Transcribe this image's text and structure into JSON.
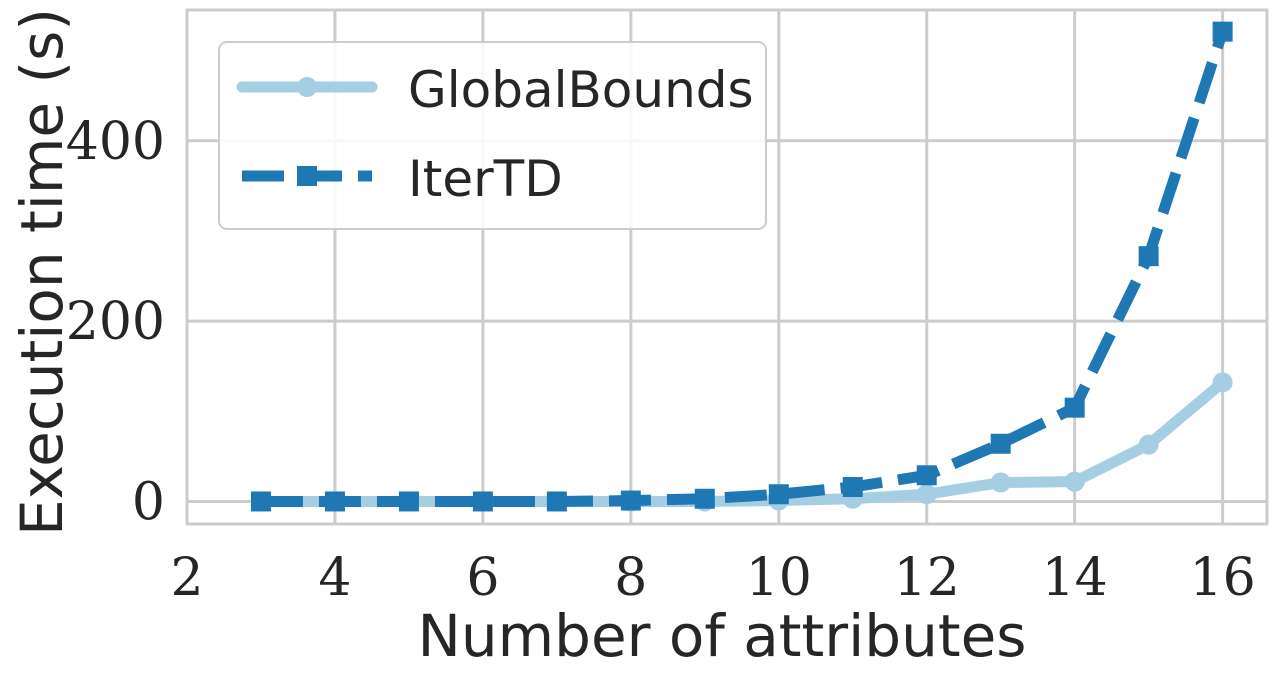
{
  "chart_data": {
    "type": "line",
    "xlabel": "Number of attributes",
    "ylabel": "Execution time (s)",
    "xlim": [
      2,
      16.6
    ],
    "ylim": [
      -25,
      545
    ],
    "xticks": [
      2,
      4,
      6,
      8,
      10,
      12,
      14,
      16
    ],
    "yticks": [
      0,
      200,
      400
    ],
    "grid": true,
    "legend_position": "top-left",
    "x": [
      3,
      4,
      5,
      6,
      7,
      8,
      9,
      10,
      11,
      12,
      13,
      14,
      15,
      16
    ],
    "series": [
      {
        "name": "GlobalBounds",
        "color": "#a6cee3",
        "line_style": "solid",
        "marker": "circle",
        "values": [
          0,
          0,
          0,
          0,
          0,
          0,
          0,
          1,
          3,
          8,
          21,
          22,
          63,
          132
        ]
      },
      {
        "name": "IterTD",
        "color": "#1f78b4",
        "line_style": "dashed",
        "marker": "square",
        "values": [
          0,
          0,
          0,
          0,
          0,
          1,
          3,
          8,
          16,
          29,
          64,
          104,
          272,
          521
        ]
      }
    ]
  }
}
